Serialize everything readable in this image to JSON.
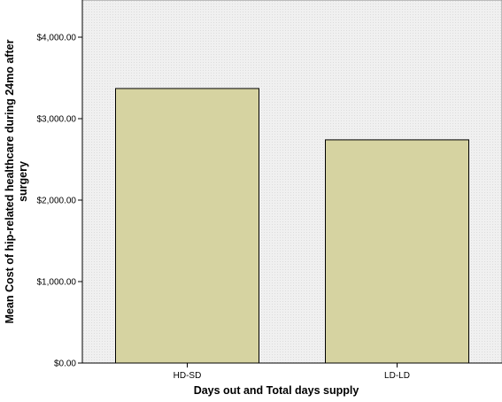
{
  "chart_data": {
    "type": "bar",
    "categories": [
      "HD-SD",
      "LD-LD"
    ],
    "values": [
      3370,
      2740
    ],
    "ylim": [
      0,
      4000
    ],
    "yticks": [
      0,
      1000,
      2000,
      3000,
      4000
    ],
    "ytick_labels": [
      "$0.00",
      "$1,000.00",
      "$2,000.00",
      "$3,000.00",
      "$4,000.00"
    ],
    "xlabel": "Days out and Total days supply",
    "ylabel_line1": "Mean Cost of hip-related healthcare during 24mo after",
    "ylabel_line2": "surgery",
    "grid": false,
    "colors": {
      "bar_fill": "#d6d3a1",
      "bar_stroke": "#000000",
      "plot_bg": "#f0f0f0",
      "axis": "#000000"
    }
  }
}
